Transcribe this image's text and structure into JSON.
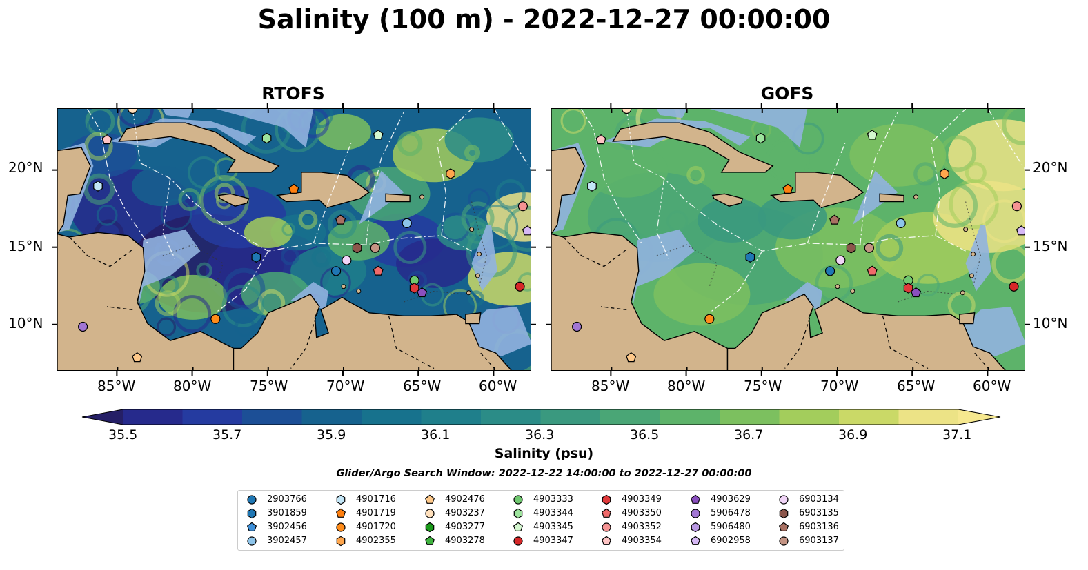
{
  "title": "Salinity (100 m) - 2022-12-27 00:00:00",
  "panels": [
    {
      "title": "RTOFS",
      "field": "rtofs"
    },
    {
      "title": "GOFS",
      "field": "gofs"
    }
  ],
  "axes": {
    "lon_range": [
      -89,
      -57.5
    ],
    "lat_range": [
      7,
      24
    ],
    "x_ticks": [
      "85°W",
      "80°W",
      "75°W",
      "70°W",
      "65°W",
      "60°W"
    ],
    "x_tick_values": [
      -85,
      -80,
      -75,
      -70,
      -65,
      -60
    ],
    "y_ticks": [
      "20°N",
      "15°N",
      "10°N"
    ],
    "y_tick_values": [
      20,
      15,
      10
    ]
  },
  "colorbar": {
    "title": "Salinity (psu)",
    "min": 35.5,
    "max": 37.1,
    "step": 0.1,
    "tick_labels": [
      "35.5",
      "35.7",
      "35.9",
      "36.1",
      "36.3",
      "36.5",
      "36.7",
      "36.9",
      "37.1"
    ],
    "colors": [
      "#251f66",
      "#262a8c",
      "#253ba0",
      "#1c4f96",
      "#16628e",
      "#17728d",
      "#1f7f8b",
      "#2b8c87",
      "#3a997f",
      "#4aa676",
      "#5db36a",
      "#7cc05f",
      "#a3cd5c",
      "#cad967",
      "#ece386",
      "#f6e88f"
    ],
    "extend": "both"
  },
  "search_window": "Glider/Argo Search Window: 2022-12-22 14:00:00 to 2022-12-27 00:00:00",
  "legend": [
    {
      "id": "2903766",
      "marker": "circle",
      "color": "#1f77b4"
    },
    {
      "id": "3901859",
      "marker": "hexagon",
      "color": "#1f77b4"
    },
    {
      "id": "3902456",
      "marker": "pentagon",
      "color": "#3d8fd8"
    },
    {
      "id": "3902457",
      "marker": "circle",
      "color": "#8dc4ea"
    },
    {
      "id": "4901716",
      "marker": "hexagon",
      "color": "#c3e6f7"
    },
    {
      "id": "4901719",
      "marker": "pentagon",
      "color": "#ff7f0e"
    },
    {
      "id": "4901720",
      "marker": "circle",
      "color": "#ff8c1a"
    },
    {
      "id": "4902355",
      "marker": "hexagon",
      "color": "#ffa64d"
    },
    {
      "id": "4902476",
      "marker": "pentagon",
      "color": "#ffc98a"
    },
    {
      "id": "4903237",
      "marker": "circle",
      "color": "#ffe0bc"
    },
    {
      "id": "4903277",
      "marker": "hexagon",
      "color": "#1a9a1a"
    },
    {
      "id": "4903278",
      "marker": "pentagon",
      "color": "#3fb23f"
    },
    {
      "id": "4903333",
      "marker": "circle",
      "color": "#6fc86f"
    },
    {
      "id": "4903344",
      "marker": "hexagon",
      "color": "#9de39d"
    },
    {
      "id": "4903345",
      "marker": "pentagon",
      "color": "#d4f7cf"
    },
    {
      "id": "4903347",
      "marker": "circle",
      "color": "#d62728"
    },
    {
      "id": "4903349",
      "marker": "hexagon",
      "color": "#e0393b"
    },
    {
      "id": "4903350",
      "marker": "pentagon",
      "color": "#f06a6a"
    },
    {
      "id": "4903352",
      "marker": "circle",
      "color": "#f59393"
    },
    {
      "id": "4903354",
      "marker": "pentagon",
      "color": "#ffc4c4"
    },
    {
      "id": "4903629",
      "marker": "pentagon",
      "color": "#8a4fbf"
    },
    {
      "id": "5906478",
      "marker": "circle",
      "color": "#a276d4"
    },
    {
      "id": "5906480",
      "marker": "hexagon",
      "color": "#b897e3"
    },
    {
      "id": "6902958",
      "marker": "pentagon",
      "color": "#d6b8f5"
    },
    {
      "id": "6903134",
      "marker": "circle",
      "color": "#f0d4f7"
    },
    {
      "id": "6903135",
      "marker": "hexagon",
      "color": "#8c564b"
    },
    {
      "id": "6903136",
      "marker": "pentagon",
      "color": "#a87062"
    },
    {
      "id": "6903137",
      "marker": "circle",
      "color": "#c49484"
    }
  ],
  "platforms": [
    {
      "id": "4903354",
      "lon": -85.7,
      "lat": 22.0
    },
    {
      "id": "4901716",
      "lon": -86.3,
      "lat": 19.0
    },
    {
      "id": "4903344",
      "lon": -75.1,
      "lat": 22.1
    },
    {
      "id": "4903345",
      "lon": -67.7,
      "lat": 22.3
    },
    {
      "id": "4901719",
      "lon": -73.3,
      "lat": 18.8
    },
    {
      "id": "4902355",
      "lon": -62.9,
      "lat": 19.8
    },
    {
      "id": "4903352",
      "lon": -58.1,
      "lat": 17.7
    },
    {
      "id": "6903136",
      "lon": -70.2,
      "lat": 16.8
    },
    {
      "id": "3902457",
      "lon": -65.8,
      "lat": 16.6
    },
    {
      "id": "6902958",
      "lon": -57.8,
      "lat": 16.1
    },
    {
      "id": "3901859",
      "lon": -75.8,
      "lat": 14.4
    },
    {
      "id": "6903135",
      "lon": -69.1,
      "lat": 15.0
    },
    {
      "id": "6903137",
      "lon": -67.9,
      "lat": 15.0
    },
    {
      "id": "6903134",
      "lon": -69.8,
      "lat": 14.2
    },
    {
      "id": "2903766",
      "lon": -70.5,
      "lat": 13.5
    },
    {
      "id": "4903350",
      "lon": -67.7,
      "lat": 13.5
    },
    {
      "id": "4903333",
      "lon": -65.3,
      "lat": 12.9
    },
    {
      "id": "4903349",
      "lon": -65.3,
      "lat": 12.4
    },
    {
      "id": "4903629",
      "lon": -64.8,
      "lat": 12.1
    },
    {
      "id": "4903347",
      "lon": -58.3,
      "lat": 12.5
    },
    {
      "id": "4901720",
      "lon": -78.5,
      "lat": 10.4
    },
    {
      "id": "5906478",
      "lon": -87.3,
      "lat": 9.9
    },
    {
      "id": "4902476",
      "lon": -83.7,
      "lat": 7.9
    },
    {
      "id": "4903237",
      "lon": -84.0,
      "lat": 24.0
    }
  ]
}
